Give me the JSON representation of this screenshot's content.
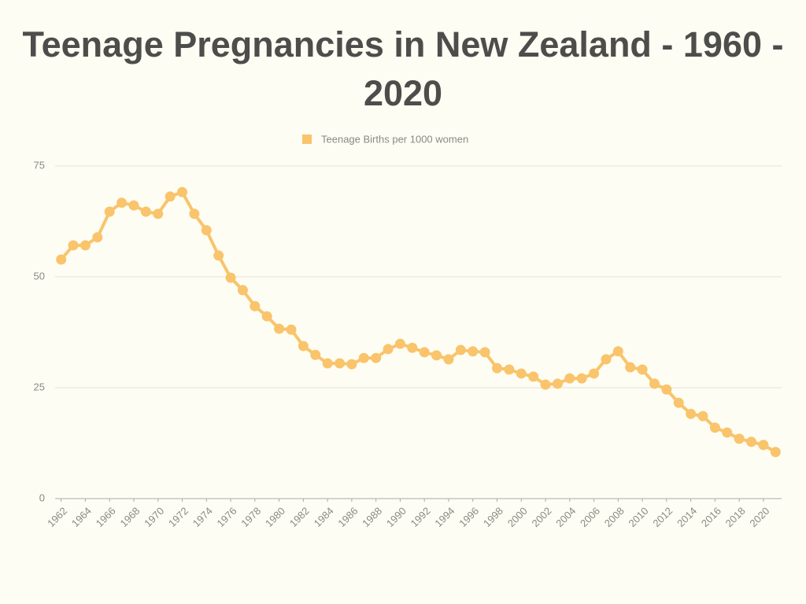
{
  "chart_data": {
    "type": "line",
    "title": "Teenage Pregnancies in New Zealand - 1960 - 2020",
    "x": [
      1962,
      1963,
      1964,
      1965,
      1966,
      1967,
      1968,
      1969,
      1970,
      1971,
      1972,
      1973,
      1974,
      1975,
      1976,
      1977,
      1978,
      1979,
      1980,
      1981,
      1982,
      1983,
      1984,
      1985,
      1986,
      1987,
      1988,
      1989,
      1990,
      1991,
      1992,
      1993,
      1994,
      1995,
      1996,
      1997,
      1998,
      1999,
      2000,
      2001,
      2002,
      2003,
      2004,
      2005,
      2006,
      2007,
      2008,
      2009,
      2010,
      2011,
      2012,
      2013,
      2014,
      2015,
      2016,
      2017,
      2018,
      2019,
      2020,
      2021
    ],
    "series": [
      {
        "name": "Teenage Births per 1000 women",
        "color": "#f9c46b",
        "values": [
          53.9,
          57.1,
          57.1,
          58.9,
          64.7,
          66.7,
          66.1,
          64.7,
          64.2,
          68.1,
          69.1,
          64.2,
          60.5,
          54.8,
          49.8,
          47.0,
          43.4,
          41.1,
          38.3,
          38.1,
          34.4,
          32.4,
          30.5,
          30.5,
          30.3,
          31.7,
          31.7,
          33.7,
          34.9,
          34.0,
          33.0,
          32.3,
          31.4,
          33.5,
          33.2,
          33.0,
          29.4,
          29.1,
          28.2,
          27.5,
          25.7,
          25.9,
          27.1,
          27.1,
          28.2,
          31.4,
          33.2,
          29.6,
          29.1,
          25.9,
          24.6,
          21.6,
          19.1,
          18.6,
          16.0,
          14.9,
          13.5,
          12.8,
          12.1,
          10.5
        ]
      }
    ],
    "xlim": [
      1961.5,
      2021.5
    ],
    "xticks": [
      1962,
      1964,
      1966,
      1968,
      1970,
      1972,
      1974,
      1976,
      1978,
      1980,
      1982,
      1984,
      1986,
      1988,
      1990,
      1992,
      1994,
      1996,
      1998,
      2000,
      2002,
      2004,
      2006,
      2008,
      2010,
      2012,
      2014,
      2016,
      2018,
      2020
    ],
    "ylim": [
      0,
      75
    ],
    "yticks": [
      0,
      25,
      50,
      75
    ],
    "grid": true,
    "legend": "top"
  }
}
